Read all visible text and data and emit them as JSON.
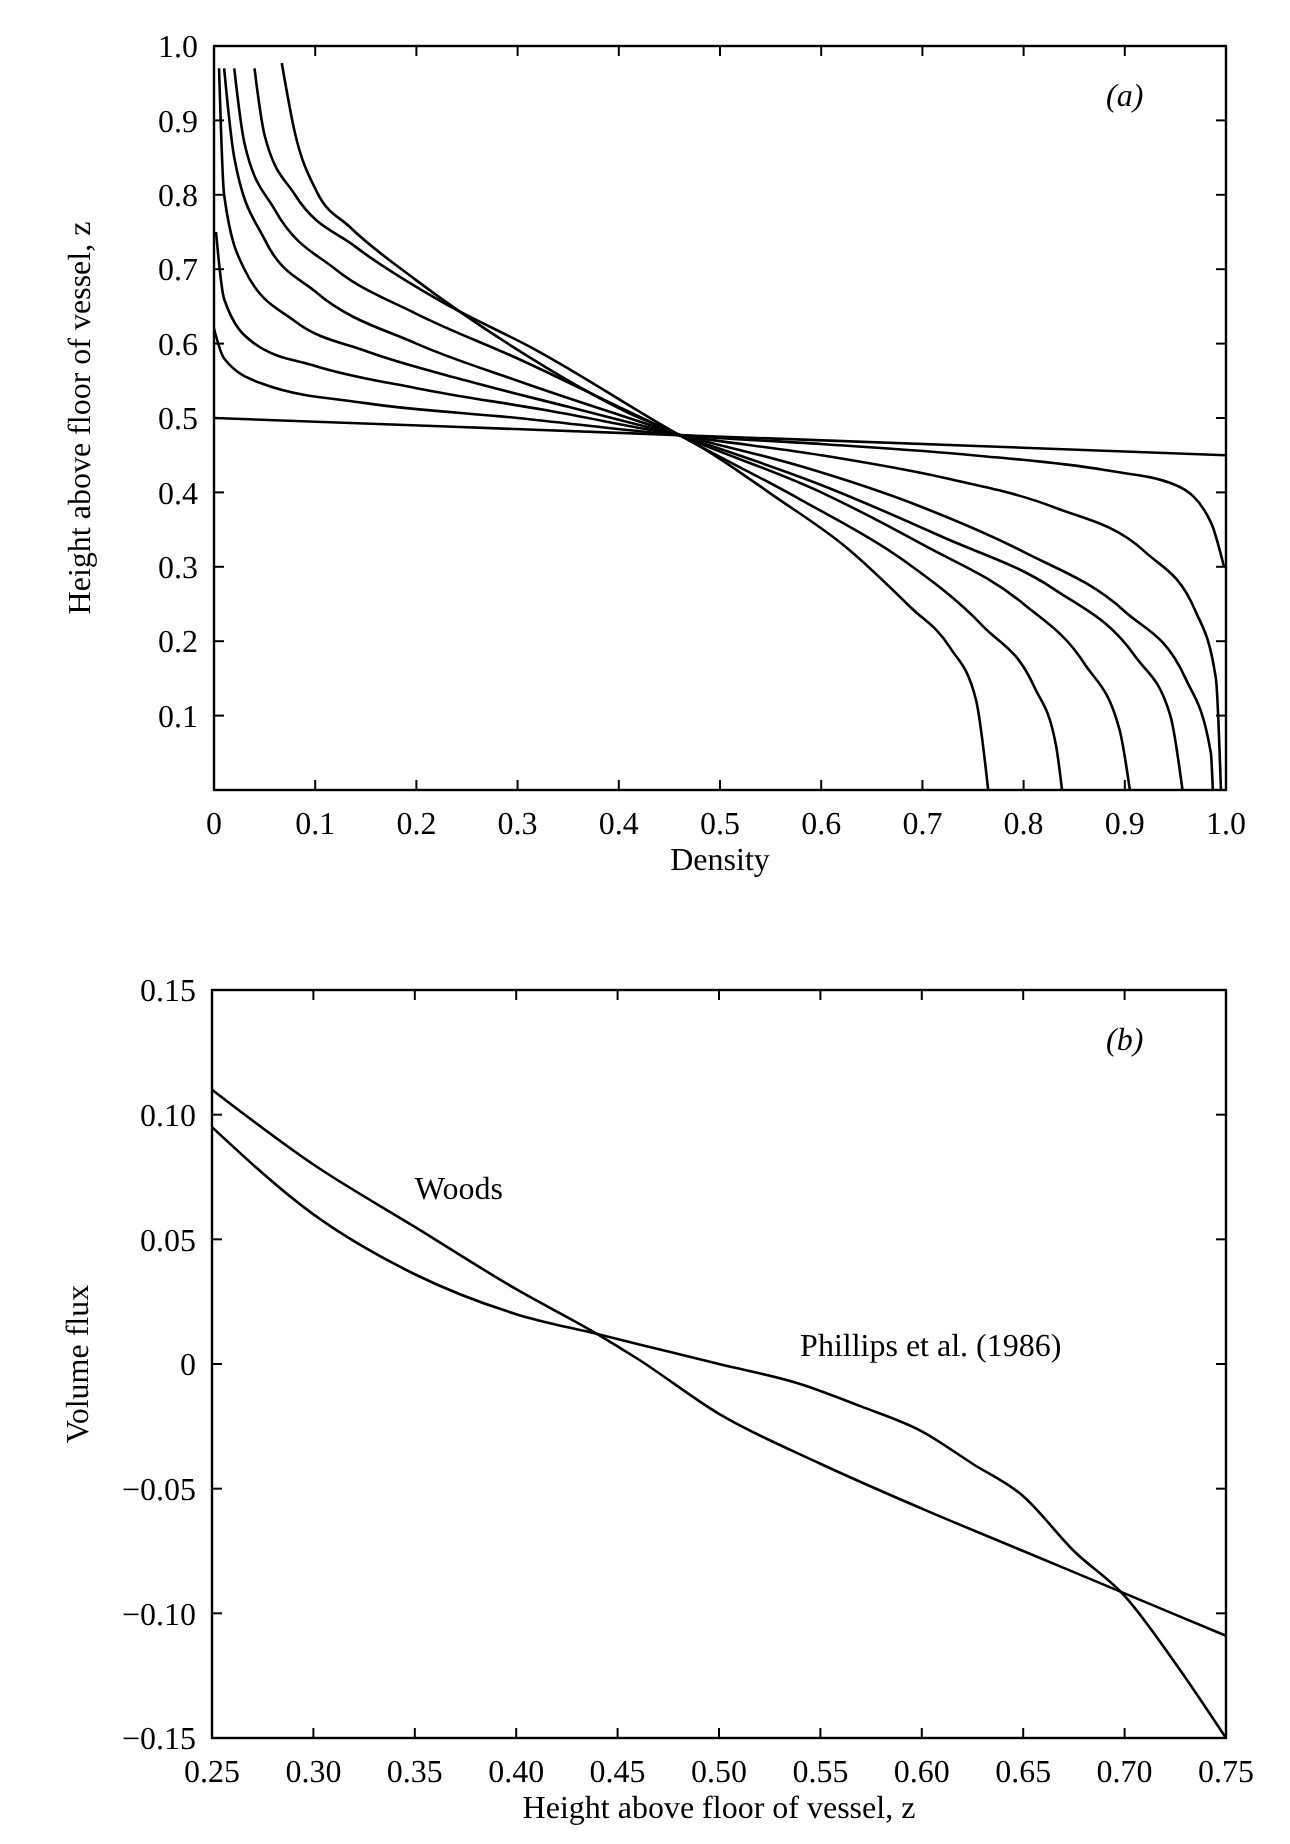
{
  "chart_data": [
    {
      "type": "line",
      "xlabel": "Density",
      "ylabel": "Height above floor of vessel, z",
      "annotations": [
        "(a)"
      ],
      "xlim": [
        0,
        1
      ],
      "ylim": [
        0,
        1
      ],
      "xticks": [
        0,
        0.1,
        0.2,
        0.3,
        0.4,
        0.5,
        0.6,
        0.7,
        0.8,
        0.9,
        {
          "value": 1,
          "label": "1.0"
        }
      ],
      "yticks": [
        0.1,
        0.2,
        0.3,
        0.4,
        0.5,
        0.6,
        0.7,
        0.8,
        0.9,
        {
          "value": 1,
          "label": "1.0"
        }
      ],
      "series": [
        {
          "color": "#000000",
          "x": [
            0,
            0.46,
            1
          ],
          "values": [
            0.5,
            0.477,
            0.45
          ]
        },
        {
          "color": "#000000",
          "x": [
            0,
            0.01,
            0.05,
            0.15,
            0.3,
            0.46,
            0.6,
            0.75,
            0.88,
            0.95,
            0.985,
            0.998
          ],
          "values": [
            0.62,
            0.58,
            0.545,
            0.52,
            0.5,
            0.477,
            0.465,
            0.45,
            0.43,
            0.41,
            0.36,
            0.3
          ]
        },
        {
          "color": "#000000",
          "x": [
            0.002,
            0.01,
            0.04,
            0.1,
            0.2,
            0.33,
            0.46,
            0.6,
            0.72,
            0.83,
            0.92,
            0.97,
            0.99,
            0.995
          ],
          "values": [
            0.75,
            0.66,
            0.6,
            0.57,
            0.54,
            0.51,
            0.477,
            0.45,
            0.42,
            0.38,
            0.32,
            0.24,
            0.15,
            0
          ]
        },
        {
          "color": "#000000",
          "x": [
            0.005,
            0.01,
            0.03,
            0.08,
            0.15,
            0.25,
            0.35,
            0.46,
            0.58,
            0.7,
            0.8,
            0.9,
            0.96,
            0.985,
            0.987
          ],
          "values": [
            0.97,
            0.8,
            0.7,
            0.63,
            0.59,
            0.55,
            0.515,
            0.477,
            0.435,
            0.38,
            0.32,
            0.24,
            0.15,
            0.05,
            0
          ]
        },
        {
          "color": "#000000",
          "x": [
            0.01,
            0.02,
            0.05,
            0.1,
            0.2,
            0.3,
            0.46,
            0.6,
            0.72,
            0.83,
            0.91,
            0.945,
            0.957
          ],
          "values": [
            0.97,
            0.85,
            0.74,
            0.67,
            0.6,
            0.55,
            0.477,
            0.41,
            0.34,
            0.27,
            0.18,
            0.1,
            0
          ]
        },
        {
          "color": "#000000",
          "x": [
            0.02,
            0.03,
            0.06,
            0.12,
            0.2,
            0.3,
            0.46,
            0.6,
            0.7,
            0.8,
            0.86,
            0.895,
            0.905
          ],
          "values": [
            0.97,
            0.87,
            0.78,
            0.7,
            0.64,
            0.58,
            0.477,
            0.4,
            0.33,
            0.25,
            0.17,
            0.08,
            0
          ]
        },
        {
          "color": "#000000",
          "x": [
            0.04,
            0.05,
            0.08,
            0.14,
            0.22,
            0.32,
            0.46,
            0.58,
            0.68,
            0.76,
            0.81,
            0.832,
            0.838
          ],
          "values": [
            0.97,
            0.88,
            0.8,
            0.73,
            0.66,
            0.59,
            0.477,
            0.39,
            0.31,
            0.22,
            0.14,
            0.06,
            0
          ]
        },
        {
          "color": "#000000",
          "x": [
            0.067,
            0.08,
            0.102,
            0.134,
            0.199,
            0.295,
            0.411,
            0.46,
            0.559,
            0.624,
            0.688,
            0.727,
            0.753,
            0.765
          ],
          "values": [
            0.977,
            0.883,
            0.803,
            0.757,
            0.686,
            0.596,
            0.506,
            0.477,
            0.39,
            0.327,
            0.246,
            0.192,
            0.121,
            0
          ]
        }
      ]
    },
    {
      "type": "line",
      "xlabel": "Height above floor of vessel, z",
      "ylabel": "Volume flux",
      "annotations": [
        "(b)"
      ],
      "xlim": [
        0.25,
        0.75
      ],
      "ylim": [
        -0.15,
        0.15
      ],
      "xticks": [
        0.25,
        {
          "value": 0.3,
          "label": "0.30"
        },
        0.35,
        {
          "value": 0.4,
          "label": "0.40"
        },
        0.45,
        {
          "value": 0.5,
          "label": "0.50"
        },
        0.55,
        {
          "value": 0.6,
          "label": "0.60"
        },
        0.65,
        {
          "value": 0.7,
          "label": "0.70"
        },
        0.75
      ],
      "yticks": [
        {
          "value": -0.15,
          "label": "−0.15"
        },
        {
          "value": -0.1,
          "label": "−0.10"
        },
        {
          "value": -0.05,
          "label": "−0.05"
        },
        0,
        0.05,
        {
          "value": 0.1,
          "label": "0.10"
        },
        0.15
      ],
      "series": [
        {
          "name": "Woods",
          "color": "#000000",
          "x": [
            0.25,
            0.3,
            0.35,
            0.4,
            0.44,
            0.46,
            0.5,
            0.55,
            0.6,
            0.65,
            0.7,
            0.75
          ],
          "values": [
            0.11,
            0.08,
            0.055,
            0.03,
            0.012,
            0.002,
            -0.02,
            -0.04,
            -0.058,
            -0.075,
            -0.092,
            -0.109
          ]
        },
        {
          "name": "Phillips et al. (1986)",
          "color": "#000000",
          "x": [
            0.25,
            0.3,
            0.35,
            0.4,
            0.44,
            0.475,
            0.5,
            0.54,
            0.57,
            0.6,
            0.625,
            0.65,
            0.675,
            0.7,
            0.725,
            0.75
          ],
          "values": [
            0.095,
            0.06,
            0.036,
            0.02,
            0.012,
            0.005,
            0,
            -0.008,
            -0.017,
            -0.027,
            -0.04,
            -0.053,
            -0.075,
            -0.093,
            -0.12,
            -0.15
          ]
        }
      ]
    }
  ]
}
